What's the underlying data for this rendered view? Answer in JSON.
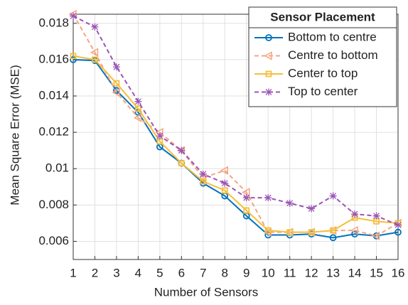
{
  "chart_data": {
    "type": "line",
    "xlabel": "Number of Sensors",
    "ylabel": "Mean Square Error (MSE)",
    "legend_title": "Sensor Placement",
    "legend": "upper right",
    "grid": true,
    "x": [
      1,
      2,
      3,
      4,
      5,
      6,
      7,
      8,
      9,
      10,
      11,
      12,
      13,
      14,
      15,
      16
    ],
    "xlim": [
      1,
      16
    ],
    "xticks": [
      1,
      2,
      3,
      4,
      5,
      6,
      7,
      8,
      9,
      10,
      11,
      12,
      13,
      14,
      15,
      16
    ],
    "ylim": [
      0.005,
      0.0185
    ],
    "yticks": [
      0.006,
      0.008,
      0.01,
      0.012,
      0.014,
      0.016,
      0.018
    ],
    "series": [
      {
        "name": "Bottom to centre",
        "color": "#0072bd",
        "marker": "circle",
        "dash": false,
        "values": [
          0.016,
          0.01595,
          0.0143,
          0.0131,
          0.0112,
          0.0103,
          0.0092,
          0.0085,
          0.0074,
          0.00635,
          0.00635,
          0.0064,
          0.0062,
          0.0064,
          0.0063,
          0.0065
        ]
      },
      {
        "name": "Centre to bottom",
        "color": "#f4a582",
        "marker": "triangle",
        "dash": true,
        "values": [
          0.0185,
          0.0164,
          0.0142,
          0.0128,
          0.012,
          0.011,
          0.0095,
          0.0099,
          0.0087,
          0.0065,
          0.0065,
          0.0065,
          0.0066,
          0.0066,
          0.0063,
          0.007
        ]
      },
      {
        "name": "Center to top",
        "color": "#f7be3c",
        "marker": "square",
        "dash": false,
        "values": [
          0.0162,
          0.016,
          0.0147,
          0.0133,
          0.0115,
          0.0103,
          0.0093,
          0.0088,
          0.0077,
          0.0066,
          0.0065,
          0.0065,
          0.0066,
          0.0073,
          0.0071,
          0.007
        ]
      },
      {
        "name": "Top to center",
        "color": "#9b55b5",
        "marker": "star",
        "dash": true,
        "values": [
          0.0184,
          0.0178,
          0.0156,
          0.0137,
          0.0118,
          0.011,
          0.0097,
          0.0092,
          0.0084,
          0.0084,
          0.0081,
          0.0078,
          0.0085,
          0.0075,
          0.0074,
          0.0069
        ]
      }
    ]
  }
}
